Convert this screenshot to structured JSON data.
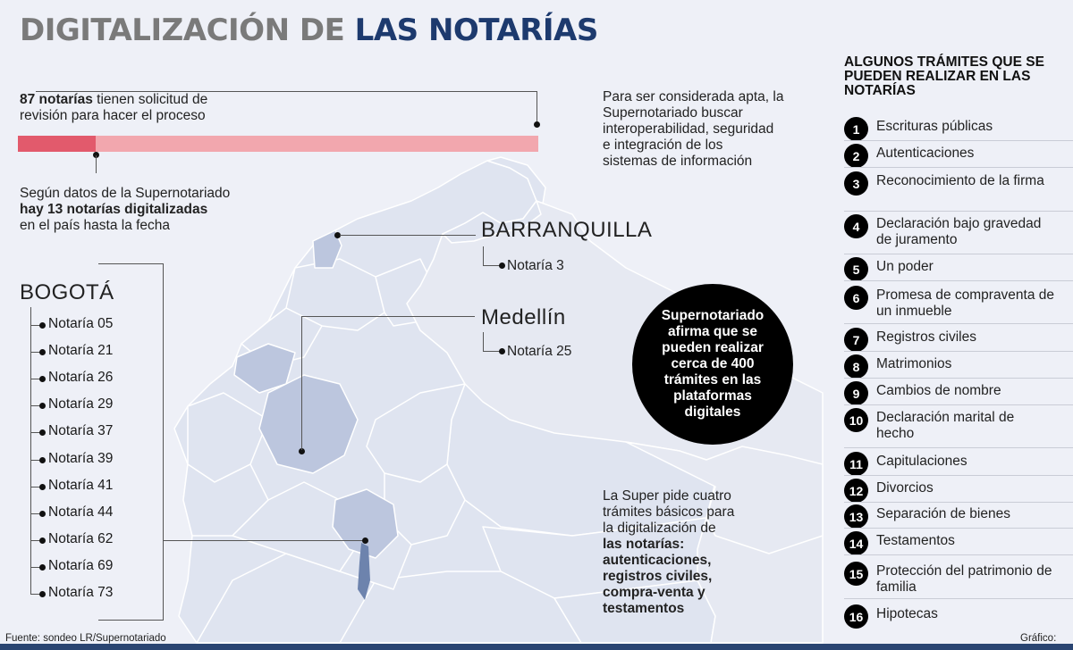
{
  "title": {
    "part1": "DIGITALIZACIÓN DE",
    "part2": "LAS NOTARÍAS"
  },
  "progress": {
    "fraction": 0.149,
    "top_bold": "87 notarías",
    "top_rest": " tienen solicitud de",
    "top_line2": "revisión para hacer el proceso",
    "bottom_line1": "Según datos de la Supernotariado",
    "bottom_bold": "hay 13 notarías digitalizadas",
    "bottom_line3": "en el país hasta la fecha"
  },
  "apta_text": [
    "Para ser considerada apta, la",
    "Supernotariado buscar",
    "interoperabilidad, seguridad",
    "e integración de los",
    "sistemas de información"
  ],
  "cities": {
    "barranquilla": {
      "name": "BARRANQUILLA",
      "notarias": [
        "Notaría 3"
      ]
    },
    "medellin": {
      "name": "Medellín",
      "notarias": [
        "Notaría 25"
      ]
    },
    "bogota": {
      "name": "BOGOTÁ",
      "notarias": [
        "Notaría 05",
        "Notaría 21",
        "Notaría 26",
        "Notaría 29",
        "Notaría 37",
        "Notaría 39",
        "Notaría 41",
        "Notaría 44",
        "Notaría 62",
        "Notaría 69",
        "Notaría 73"
      ]
    }
  },
  "circle": {
    "pre": "Supernotariado afirma que se pueden realizar cerca de",
    "bold1": "400",
    "bold2": "trámites",
    "post": "en las plataformas digitales"
  },
  "super_text": {
    "lines": [
      "La Super pide cuatro",
      "trámites básicos para",
      "la digitalización de"
    ],
    "bold_lines": [
      "las notarías:",
      "autenticaciones,",
      "registros civiles,",
      "compra-venta y",
      "testamentos"
    ]
  },
  "sidebar": {
    "title": "ALGUNOS TRÁMITES QUE SE PUEDEN REALIZAR EN LAS NOTARÍAS",
    "items": [
      {
        "n": "1",
        "label": "Escrituras públicas"
      },
      {
        "n": "2",
        "label": "Autenticaciones"
      },
      {
        "n": "3",
        "label": "Reconocimiento de la firma"
      },
      {
        "n": "4",
        "label": "Declaración bajo gravedad de juramento"
      },
      {
        "n": "5",
        "label": "Un poder"
      },
      {
        "n": "6",
        "label": "Promesa de compraventa de un inmueble"
      },
      {
        "n": "7",
        "label": "Registros civiles"
      },
      {
        "n": "8",
        "label": "Matrimonios"
      },
      {
        "n": "9",
        "label": "Cambios de nombre"
      },
      {
        "n": "10",
        "label": "Declaración marital de hecho"
      },
      {
        "n": "11",
        "label": "Capitulaciones"
      },
      {
        "n": "12",
        "label": "Divorcios"
      },
      {
        "n": "13",
        "label": "Separación de bienes"
      },
      {
        "n": "14",
        "label": "Testamentos"
      },
      {
        "n": "15",
        "label": "Protección del patrimonio de familia"
      },
      {
        "n": "16",
        "label": "Hipotecas"
      }
    ]
  },
  "footer": {
    "source": "Fuente: sondeo LR/Supernotariado",
    "graphic": "Gráfico: LR-GR"
  },
  "colors": {
    "title_gray": "#7a7a7a",
    "title_navy": "#1d3a6e",
    "bar_dark": "#e25a6c",
    "bar_light": "#f2a7ae",
    "map_fill": "#dfe4f0",
    "map_highlight": "#bcc6de"
  }
}
